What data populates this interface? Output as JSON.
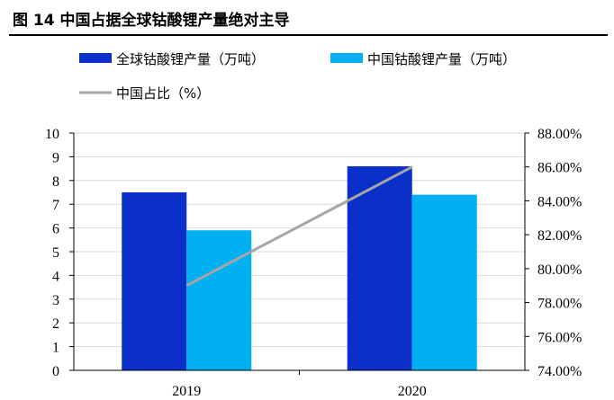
{
  "figure": {
    "title": "图 14 中国占据全球钴酸锂产量绝对主导"
  },
  "chart_data": {
    "type": "bar",
    "categories": [
      "2019",
      "2020"
    ],
    "series": [
      {
        "name": "全球钴酸锂产量（万吨）",
        "kind": "bar",
        "axis": "left",
        "color": "#0b2fc9",
        "values": [
          7.5,
          8.6
        ]
      },
      {
        "name": "中国钴酸锂产量（万吨）",
        "kind": "bar",
        "axis": "left",
        "color": "#00b0f0",
        "values": [
          5.9,
          7.4
        ]
      },
      {
        "name": "中国占比（%）",
        "kind": "line",
        "axis": "right",
        "color": "#a6a6a6",
        "values": [
          79.0,
          86.0
        ]
      }
    ],
    "left_axis": {
      "ylim": [
        0,
        10
      ],
      "ticks": [
        "0",
        "1",
        "2",
        "3",
        "4",
        "5",
        "6",
        "7",
        "8",
        "9",
        "10"
      ]
    },
    "right_axis": {
      "ylim": [
        74,
        88
      ],
      "ticks": [
        "74.00%",
        "76.00%",
        "78.00%",
        "80.00%",
        "82.00%",
        "84.00%",
        "86.00%",
        "88.00%"
      ]
    },
    "grid": true,
    "legend_position": "top"
  }
}
